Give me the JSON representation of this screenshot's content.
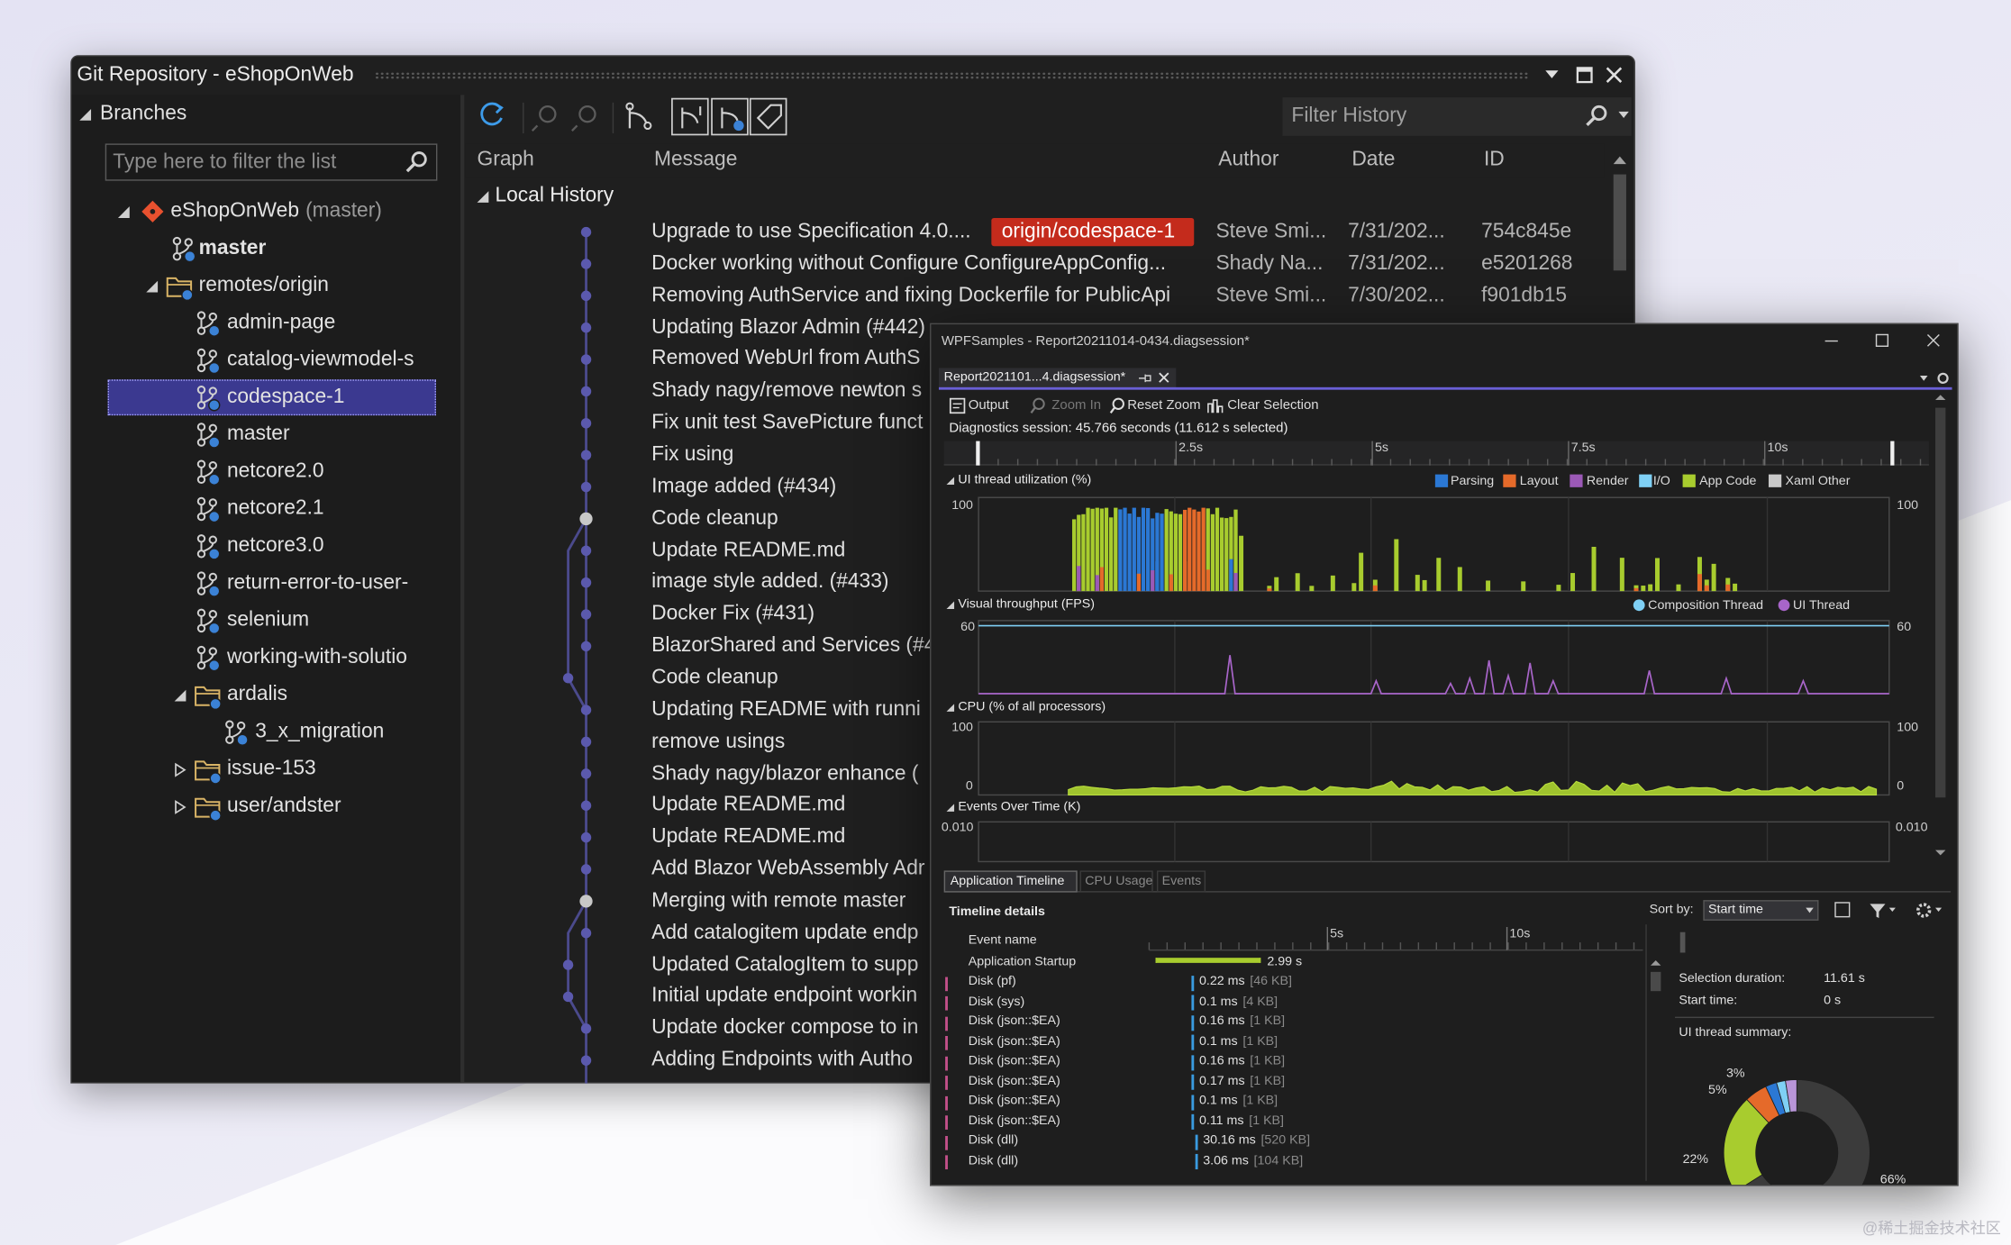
{
  "git_repository": {
    "title": "Git Repository - eShopOnWeb",
    "branches": {
      "header": "Branches",
      "filter_placeholder": "Type here to filter the list",
      "tree": [
        {
          "label": "eShopOnWeb",
          "suffix": "(master)"
        },
        {
          "label": "master"
        },
        {
          "label": "remotes/origin"
        },
        {
          "label": "admin-page"
        },
        {
          "label": "catalog-viewmodel-s"
        },
        {
          "label": "codespace-1"
        },
        {
          "label": "master"
        },
        {
          "label": "netcore2.0"
        },
        {
          "label": "netcore2.1"
        },
        {
          "label": "netcore3.0"
        },
        {
          "label": "return-error-to-user-"
        },
        {
          "label": "selenium"
        },
        {
          "label": "working-with-solutio"
        },
        {
          "label": "ardalis"
        },
        {
          "label": "3_x_migration"
        },
        {
          "label": "issue-153"
        },
        {
          "label": "user/andster"
        }
      ]
    },
    "history": {
      "filter_placeholder": "Filter History",
      "columns": [
        "Graph",
        "Message",
        "Author",
        "Date",
        "ID"
      ],
      "group": "Local History",
      "commits": [
        {
          "message": "Upgrade to use Specification 4.0....",
          "tag": "origin/codespace-1",
          "author": "Steve Smi...",
          "date": "7/31/202...",
          "id": "754c845e"
        },
        {
          "message": "Docker working without Configure ConfigureAppConfig...",
          "author": "Shady Na...",
          "date": "7/31/202...",
          "id": "e5201268"
        },
        {
          "message": "Removing AuthService and fixing Dockerfile for PublicApi",
          "author": "Steve Smi...",
          "date": "7/30/202...",
          "id": "f901db15"
        },
        {
          "message": "Updating Blazor Admin (#442)"
        },
        {
          "message": "Removed WebUrl from AuthS"
        },
        {
          "message": "Shady nagy/remove newton s"
        },
        {
          "message": "Fix unit test SavePicture funct"
        },
        {
          "message": "Fix using"
        },
        {
          "message": "Image added (#434)"
        },
        {
          "message": "Code cleanup"
        },
        {
          "message": "Update README.md"
        },
        {
          "message": "image style added. (#433)"
        },
        {
          "message": "Docker Fix (#431)"
        },
        {
          "message": "BlazorShared and Services (#4"
        },
        {
          "message": "Code cleanup"
        },
        {
          "message": "Updating README with runni"
        },
        {
          "message": "remove usings"
        },
        {
          "message": "Shady nagy/blazor enhance ("
        },
        {
          "message": "Update README.md"
        },
        {
          "message": "Update README.md"
        },
        {
          "message": "Add Blazor WebAssembly Adr"
        },
        {
          "message": "Merging with remote master"
        },
        {
          "message": "Add catalogitem update endp"
        },
        {
          "message": "Updated CatalogItem to supp"
        },
        {
          "message": "Initial update endpoint workin"
        },
        {
          "message": "Update docker compose to in"
        },
        {
          "message": "Adding Endpoints with Autho"
        }
      ]
    }
  },
  "diagnostics": {
    "title": "WPFSamples - Report20211014-0434.diagsession*",
    "tab": "Report2021101...4.diagsession*",
    "toolbar": [
      "Output",
      "Zoom In",
      "Reset Zoom",
      "Clear Selection"
    ],
    "session": "Diagnostics session: 45.766 seconds (11.612 s selected)",
    "ruler": [
      "2.5s",
      "5s",
      "7.5s",
      "10s"
    ],
    "ui_thread": {
      "title": "UI thread utilization (%)",
      "max": 100,
      "legend": [
        {
          "name": "Parsing",
          "color": "#2b78d4"
        },
        {
          "name": "Layout",
          "color": "#e56a2a"
        },
        {
          "name": "Render",
          "color": "#9b59b6"
        },
        {
          "name": "I/O",
          "color": "#7fd0f5"
        },
        {
          "name": "App Code",
          "color": "#a8cc2e"
        },
        {
          "name": "Xaml Other",
          "color": "#c8c8c8"
        }
      ]
    },
    "fps": {
      "title": "Visual throughput (FPS)",
      "max": 60,
      "legend": [
        {
          "name": "Composition Thread",
          "color": "#7fd0f5"
        },
        {
          "name": "UI Thread",
          "color": "#a865c9"
        }
      ]
    },
    "cpu": {
      "title": "CPU (% of all processors)",
      "max": 100,
      "min": 0
    },
    "events": {
      "title": "Events Over Time (K)",
      "max": "0.010"
    },
    "tabs": [
      "Application Timeline",
      "CPU Usage",
      "Events"
    ],
    "details": {
      "title": "Timeline details",
      "sort_label": "Sort by:",
      "sort_value": "Start time",
      "column": "Event name",
      "ruler": [
        "5s",
        "10s"
      ],
      "rows": [
        {
          "name": "Application Startup",
          "duration": "2.99 s"
        },
        {
          "name": "Disk (pf)",
          "duration": "0.22 ms",
          "size": "[46 KB]"
        },
        {
          "name": "Disk (sys)",
          "duration": "0.1 ms",
          "size": "[4 KB]"
        },
        {
          "name": "Disk (json::$EA)",
          "duration": "0.16 ms",
          "size": "[1 KB]"
        },
        {
          "name": "Disk (json::$EA)",
          "duration": "0.1 ms",
          "size": "[1 KB]"
        },
        {
          "name": "Disk (json::$EA)",
          "duration": "0.16 ms",
          "size": "[1 KB]"
        },
        {
          "name": "Disk (json::$EA)",
          "duration": "0.17 ms",
          "size": "[1 KB]"
        },
        {
          "name": "Disk (json::$EA)",
          "duration": "0.1 ms",
          "size": "[1 KB]"
        },
        {
          "name": "Disk (json::$EA)",
          "duration": "0.11 ms",
          "size": "[1 KB]"
        },
        {
          "name": "Disk (dll)",
          "duration": "30.16 ms",
          "size": "[520 KB]"
        },
        {
          "name": "Disk (dll)",
          "duration": "3.06 ms",
          "size": "[104 KB]"
        }
      ]
    },
    "summary": {
      "selection_label": "Selection duration:",
      "selection_value": "11.61 s",
      "start_label": "Start time:",
      "start_value": "0 s",
      "ui_summary": "UI thread summary:",
      "donut_labels": [
        "3%",
        "5%",
        "22%",
        "66%"
      ]
    }
  },
  "watermark": "@稀土掘金技术社区"
}
